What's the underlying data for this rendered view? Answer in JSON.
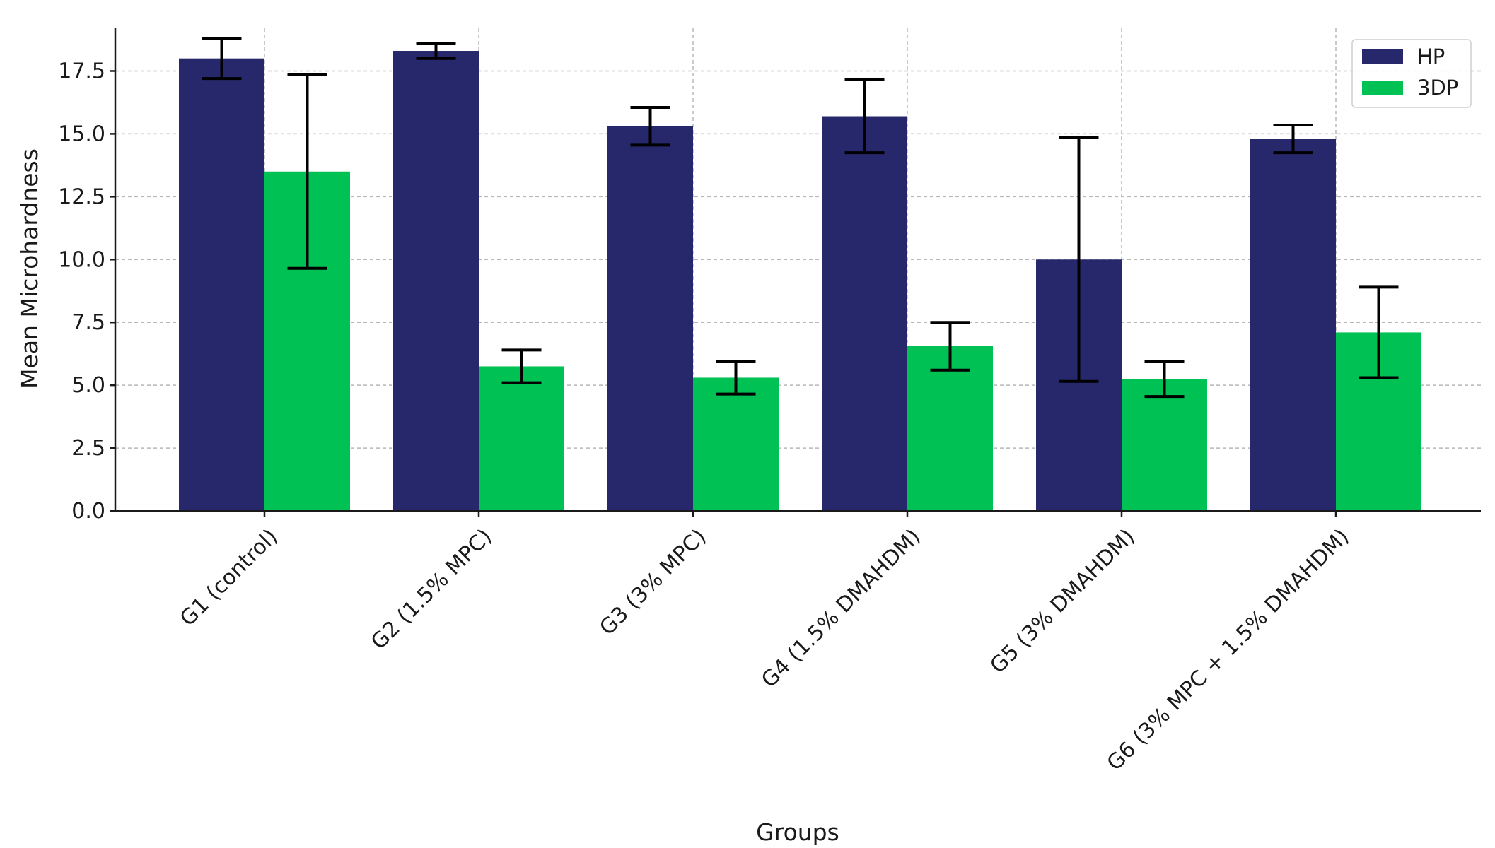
{
  "chart_data": {
    "type": "bar",
    "title": "",
    "xlabel": "Groups",
    "ylabel": "Mean Microhardness",
    "ylim": [
      0,
      19.2
    ],
    "yticks": [
      0.0,
      2.5,
      5.0,
      7.5,
      10.0,
      12.5,
      15.0,
      17.5
    ],
    "ytick_labels": [
      "0.0",
      "2.5",
      "5.0",
      "7.5",
      "10.0",
      "12.5",
      "15.0",
      "17.5"
    ],
    "grid": true,
    "legend_position": "top-right",
    "categories": [
      "G1 (control)",
      "G2 (1.5% MPC)",
      "G3 (3% MPC)",
      "G4 (1.5% DMAHDM)",
      "G5 (3% DMAHDM)",
      "G6 (3% MPC + 1.5% DMAHDM)"
    ],
    "series": [
      {
        "name": "HP",
        "color": "#27286b",
        "values": [
          18.0,
          18.3,
          15.3,
          15.7,
          10.0,
          14.8
        ],
        "errors": [
          0.8,
          0.3,
          0.75,
          1.45,
          4.85,
          0.55
        ]
      },
      {
        "name": "3DP",
        "color": "#00c153",
        "values": [
          13.5,
          5.75,
          5.3,
          6.55,
          5.25,
          7.1
        ],
        "errors": [
          3.85,
          0.65,
          0.65,
          0.95,
          0.7,
          1.8
        ]
      }
    ]
  }
}
